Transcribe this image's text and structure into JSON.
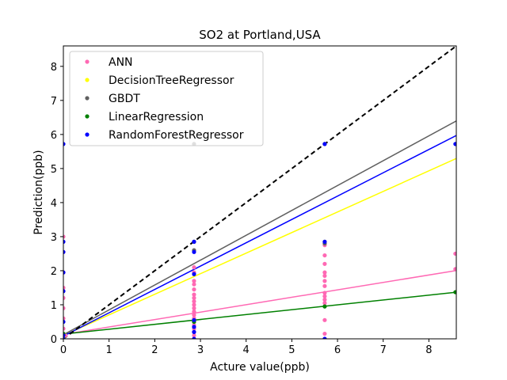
{
  "chart_data": {
    "type": "scatter",
    "title": "SO2 at Portland,USA",
    "xlabel": "Acture value(ppb)",
    "ylabel": "Prediction(ppb)",
    "xlim": [
      0,
      8.6
    ],
    "ylim": [
      0,
      8.6
    ],
    "xticks": [
      "0",
      "1",
      "2",
      "3",
      "4",
      "5",
      "6",
      "7",
      "8"
    ],
    "yticks": [
      "0",
      "1",
      "2",
      "3",
      "4",
      "5",
      "6",
      "7",
      "8"
    ],
    "legend_position": "top-left",
    "grid": false,
    "reference_line": {
      "style": "dashed",
      "color": "#000000",
      "from": [
        0,
        0
      ],
      "to": [
        8.6,
        8.6
      ]
    },
    "series": [
      {
        "name": "ANN",
        "color": "#ff69b4",
        "fit": {
          "intercept": 0.13,
          "slope": 0.218
        },
        "points": [
          [
            0.0,
            0.05
          ],
          [
            0.0,
            0.3
          ],
          [
            0.0,
            0.6
          ],
          [
            0.0,
            0.9
          ],
          [
            0.0,
            1.2
          ],
          [
            0.0,
            1.5
          ],
          [
            0.0,
            1.95
          ],
          [
            0.0,
            2.55
          ],
          [
            0.0,
            3.0
          ],
          [
            0.05,
            0.1
          ],
          [
            2.86,
            0.1
          ],
          [
            2.86,
            0.2
          ],
          [
            2.86,
            0.3
          ],
          [
            2.86,
            0.4
          ],
          [
            2.86,
            0.5
          ],
          [
            2.86,
            0.6
          ],
          [
            2.86,
            0.7
          ],
          [
            2.86,
            0.8
          ],
          [
            2.86,
            0.9
          ],
          [
            2.86,
            1.0
          ],
          [
            2.86,
            1.1
          ],
          [
            2.86,
            1.2
          ],
          [
            2.86,
            1.3
          ],
          [
            2.86,
            1.45
          ],
          [
            2.86,
            1.6
          ],
          [
            2.86,
            1.7
          ],
          [
            2.86,
            1.95
          ],
          [
            2.86,
            2.1
          ],
          [
            5.72,
            0.0
          ],
          [
            5.72,
            0.15
          ],
          [
            5.72,
            0.55
          ],
          [
            5.72,
            1.05
          ],
          [
            5.72,
            1.15
          ],
          [
            5.72,
            1.25
          ],
          [
            5.72,
            1.35
          ],
          [
            5.72,
            1.55
          ],
          [
            5.72,
            1.7
          ],
          [
            5.72,
            1.85
          ],
          [
            5.72,
            1.95
          ],
          [
            5.72,
            2.2
          ],
          [
            5.72,
            2.45
          ],
          [
            5.72,
            2.75
          ],
          [
            8.58,
            2.05
          ],
          [
            8.58,
            2.5
          ]
        ]
      },
      {
        "name": "DecisionTreeRegressor",
        "color": "#ffff00",
        "fit": {
          "intercept": 0.1,
          "slope": 0.604
        },
        "points": [
          [
            0.0,
            0.05
          ],
          [
            2.86,
            0.55
          ],
          [
            2.86,
            2.85
          ],
          [
            5.72,
            2.85
          ],
          [
            5.72,
            5.72
          ]
        ]
      },
      {
        "name": "GBDT",
        "color": "#606060",
        "fit": {
          "intercept": 0.12,
          "slope": 0.73
        },
        "points": [
          [
            0.0,
            0.1
          ],
          [
            2.86,
            2.6
          ],
          [
            2.86,
            2.85
          ],
          [
            2.86,
            5.72
          ],
          [
            5.72,
            2.8
          ],
          [
            5.72,
            5.72
          ]
        ]
      },
      {
        "name": "LinearRegression",
        "color": "#008000",
        "fit": {
          "intercept": 0.14,
          "slope": 0.143
        },
        "points": [
          [
            0.0,
            0.15
          ],
          [
            2.86,
            0.5
          ],
          [
            5.72,
            0.95
          ],
          [
            8.58,
            1.37
          ]
        ]
      },
      {
        "name": "RandomForestRegressor",
        "color": "#0000ff",
        "fit": {
          "intercept": 0.08,
          "slope": 0.685
        },
        "points": [
          [
            0.0,
            0.0
          ],
          [
            0.0,
            0.1
          ],
          [
            0.0,
            0.5
          ],
          [
            0.0,
            1.4
          ],
          [
            0.0,
            1.95
          ],
          [
            0.0,
            2.55
          ],
          [
            0.0,
            2.85
          ],
          [
            0.0,
            5.72
          ],
          [
            2.86,
            0.0
          ],
          [
            2.86,
            0.2
          ],
          [
            2.86,
            0.35
          ],
          [
            2.86,
            0.55
          ],
          [
            2.86,
            1.9
          ],
          [
            2.86,
            2.55
          ],
          [
            2.86,
            2.85
          ],
          [
            5.72,
            0.0
          ],
          [
            5.72,
            2.85
          ],
          [
            5.72,
            5.72
          ],
          [
            8.58,
            5.72
          ]
        ]
      }
    ]
  }
}
